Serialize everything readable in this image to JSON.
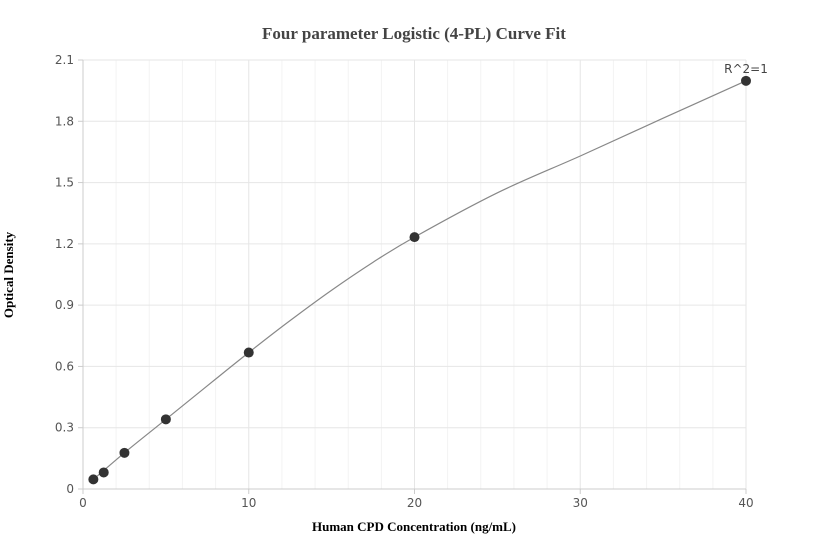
{
  "chart_data": {
    "type": "scatter",
    "title": "Four parameter Logistic (4-PL) Curve Fit",
    "xlabel": "Human CPD Concentration (ng/mL)",
    "ylabel": "Optical Density",
    "xlim": [
      0,
      40
    ],
    "ylim": [
      0,
      2.1
    ],
    "x_ticks": [
      "0",
      "10",
      "20",
      "30",
      "40"
    ],
    "y_ticks": [
      "0",
      "0.3",
      "0.6",
      "0.9",
      "1.2",
      "1.5",
      "1.8",
      "2.1"
    ],
    "grid": true,
    "points": [
      {
        "x": 0.625,
        "y": 0.047
      },
      {
        "x": 1.25,
        "y": 0.081
      },
      {
        "x": 2.5,
        "y": 0.177
      },
      {
        "x": 5,
        "y": 0.341
      },
      {
        "x": 10,
        "y": 0.668
      },
      {
        "x": 20,
        "y": 1.233
      },
      {
        "x": 40,
        "y": 1.998
      }
    ],
    "fit_curve": [
      {
        "x": 0.625,
        "y": 0.047
      },
      {
        "x": 2.5,
        "y": 0.177
      },
      {
        "x": 5,
        "y": 0.341
      },
      {
        "x": 7.5,
        "y": 0.505
      },
      {
        "x": 10,
        "y": 0.668
      },
      {
        "x": 12.5,
        "y": 0.825
      },
      {
        "x": 15,
        "y": 0.973
      },
      {
        "x": 17.5,
        "y": 1.11
      },
      {
        "x": 20,
        "y": 1.233
      },
      {
        "x": 25,
        "y": 1.45
      },
      {
        "x": 30,
        "y": 1.63
      },
      {
        "x": 35,
        "y": 1.815
      },
      {
        "x": 40,
        "y": 1.998
      }
    ],
    "annotation": "R^2=1",
    "colors": {
      "points": "#333333",
      "curve": "#888888",
      "grid": "#e6e6e6",
      "minor_grid": "#f3f3f3",
      "axis": "#cccccc"
    }
  }
}
